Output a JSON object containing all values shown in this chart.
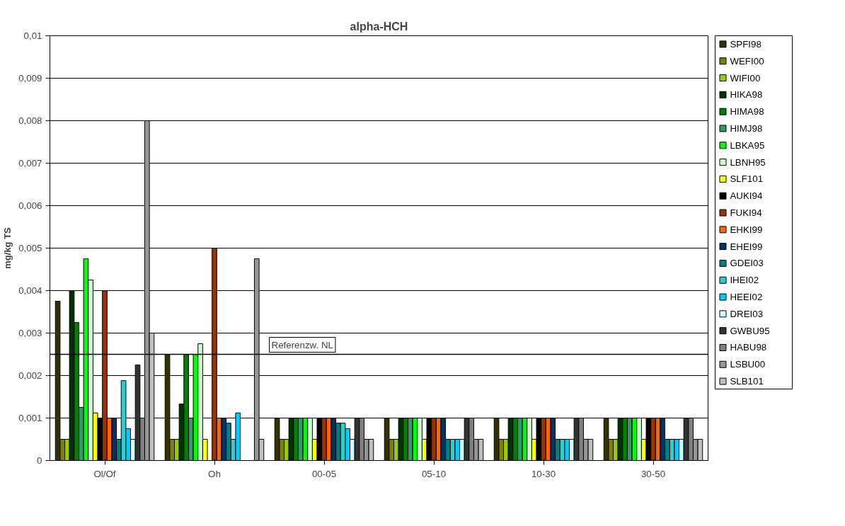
{
  "chart_data": {
    "type": "bar",
    "title": "alpha-HCH",
    "ylabel": "mg/kg TS",
    "categories": [
      "Ol/Of",
      "Oh",
      "00-05",
      "05-10",
      "10-30",
      "30-50"
    ],
    "ylim": [
      0,
      0.01
    ],
    "yticks": [
      0,
      {
        "value": 0.001,
        "label": "0,001"
      },
      {
        "value": 0.002,
        "label": "0,002"
      },
      {
        "value": 0.003,
        "label": "0,003"
      },
      {
        "value": 0.004,
        "label": "0,004"
      },
      {
        "value": 0.005,
        "label": "0,005"
      },
      {
        "value": 0.006,
        "label": "0,006"
      },
      {
        "value": 0.007,
        "label": "0,007"
      },
      {
        "value": 0.008,
        "label": "0,008"
      },
      {
        "value": 0.009,
        "label": "0,009"
      },
      {
        "value": 0.01,
        "label": "0,01"
      }
    ],
    "grid": "y",
    "legend": "right",
    "ref_lines": [
      {
        "axis": "y",
        "value": 0.0025,
        "label": "Referenzw. NL",
        "color": "#000000"
      }
    ],
    "series": [
      {
        "name": "SPFI98",
        "color": "#333300",
        "values": [
          0.00375,
          0.0025,
          0.001,
          0.001,
          0.001,
          0.001
        ]
      },
      {
        "name": "WEFI00",
        "color": "#808000",
        "values": [
          0.0005,
          0.0005,
          0.0005,
          0.0005,
          0.0005,
          0.0005
        ]
      },
      {
        "name": "WIFI00",
        "color": "#99cc00",
        "values": [
          0.0005,
          0.0005,
          0.0005,
          0.0005,
          0.0005,
          0.0005
        ]
      },
      {
        "name": "HIKA98",
        "color": "#003300",
        "values": [
          0.004,
          0.00133,
          0.001,
          0.001,
          0.001,
          0.001
        ]
      },
      {
        "name": "HIMA98",
        "color": "#008000",
        "values": [
          0.00325,
          0.0025,
          0.001,
          0.001,
          0.001,
          0.001
        ]
      },
      {
        "name": "HIMJ98",
        "color": "#339966",
        "values": [
          0.00125,
          0.001,
          0.001,
          0.001,
          0.001,
          0.001
        ]
      },
      {
        "name": "LBKA95",
        "color": "#00ff00",
        "values": [
          0.00475,
          0.0025,
          0.001,
          0.001,
          0.001,
          0.001
        ]
      },
      {
        "name": "LBNH95",
        "color": "#ccffcc",
        "values": [
          0.00425,
          0.00275,
          0.001,
          0.001,
          0.001,
          0.001
        ]
      },
      {
        "name": "SLF101",
        "color": "#ffff00",
        "values": [
          0.00112,
          0.0005,
          0.0005,
          0.0005,
          0.0005,
          0.0005
        ]
      },
      {
        "name": "AUKI94",
        "color": "#000000",
        "values": [
          0.001,
          null,
          0.001,
          0.001,
          0.001,
          0.001
        ]
      },
      {
        "name": "FUKI94",
        "color": "#993300",
        "values": [
          0.004,
          0.005,
          0.001,
          0.001,
          0.001,
          0.001
        ]
      },
      {
        "name": "EHKI99",
        "color": "#ff6600",
        "values": [
          0.001,
          0.001,
          0.001,
          0.001,
          0.001,
          0.001
        ]
      },
      {
        "name": "EHEI99",
        "color": "#003366",
        "values": [
          0.001,
          0.001,
          0.001,
          0.001,
          0.001,
          0.001
        ]
      },
      {
        "name": "GDEI03",
        "color": "#008080",
        "values": [
          0.0005,
          0.00088,
          0.00088,
          0.0005,
          0.0005,
          0.0005
        ]
      },
      {
        "name": "IHEI02",
        "color": "#33cccc",
        "values": [
          0.00188,
          0.0005,
          0.00088,
          0.0005,
          0.0005,
          0.0005
        ]
      },
      {
        "name": "HEEI02",
        "color": "#00ccff",
        "values": [
          0.00075,
          0.00112,
          0.00075,
          0.0005,
          0.0005,
          0.0005
        ]
      },
      {
        "name": "DREI03",
        "color": "#ccffff",
        "values": [
          0.0005,
          null,
          0.0005,
          0.0005,
          0.0005,
          0.0005
        ]
      },
      {
        "name": "GWBU95",
        "color": "#333333",
        "values": [
          0.00225,
          null,
          0.001,
          0.001,
          0.001,
          0.001
        ]
      },
      {
        "name": "HABU98",
        "color": "#808080",
        "values": [
          0.001,
          null,
          0.001,
          0.001,
          0.001,
          0.001
        ]
      },
      {
        "name": "LSBU00",
        "color": "#969696",
        "values": [
          0.008,
          0.00475,
          0.0005,
          0.0005,
          0.0005,
          0.0005
        ]
      },
      {
        "name": "SLB101",
        "color": "#c0c0c0",
        "values": [
          0.003,
          0.0005,
          0.0005,
          0.0005,
          0.0005,
          0.0005
        ]
      }
    ]
  }
}
